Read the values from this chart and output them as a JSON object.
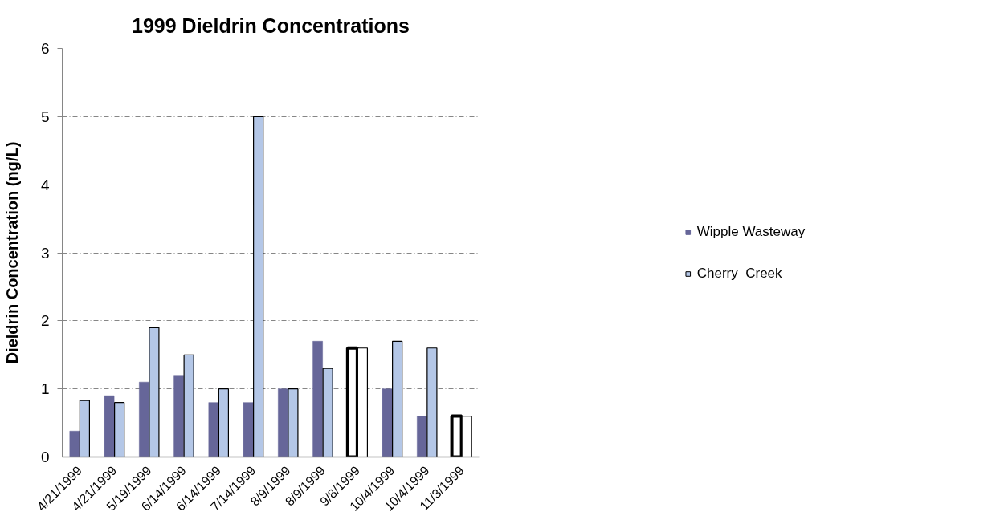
{
  "chart_data": {
    "type": "bar",
    "title": "1999 Dieldrin Concentrations",
    "ylabel": "Dieldrin Concentration (ng/L)",
    "categories": [
      "4/21/1999",
      "4/21/1999",
      "5/19/1999",
      "6/14/1999",
      "6/14/1999",
      "7/14/1999",
      "8/9/1999",
      "8/9/1999",
      "9/8/1999",
      "10/4/1999",
      "10/4/1999",
      "11/3/1999"
    ],
    "series": [
      {
        "name": "Wipple Wasteway",
        "color": "#666699",
        "colors": [
          "#666699",
          "#666699",
          "#666699",
          "#666699",
          "#666699",
          "#666699",
          "#666699",
          "#666699",
          "#ffffff",
          "#666699",
          "#666699",
          "#ffffff"
        ],
        "values": [
          0.38,
          0.9,
          1.1,
          1.2,
          0.8,
          0.8,
          1.0,
          1.7,
          1.6,
          1.0,
          0.6,
          0.6
        ]
      },
      {
        "name": "Cherry  Creek",
        "color": "#b4c7e7",
        "colors": [
          "#b4c7e7",
          "#b4c7e7",
          "#b4c7e7",
          "#b4c7e7",
          "#b4c7e7",
          "#b4c7e7",
          "#b4c7e7",
          "#b4c7e7",
          "#ffffff",
          "#b4c7e7",
          "#b4c7e7",
          "#ffffff"
        ],
        "values": [
          0.83,
          0.8,
          1.9,
          1.5,
          1.0,
          5.0,
          1.0,
          1.3,
          1.6,
          1.7,
          1.6,
          0.6
        ]
      }
    ],
    "ylim": [
      0,
      6
    ],
    "yticks": [
      0,
      1,
      2,
      3,
      4,
      5,
      6
    ],
    "grid": "y",
    "legend": "right"
  }
}
